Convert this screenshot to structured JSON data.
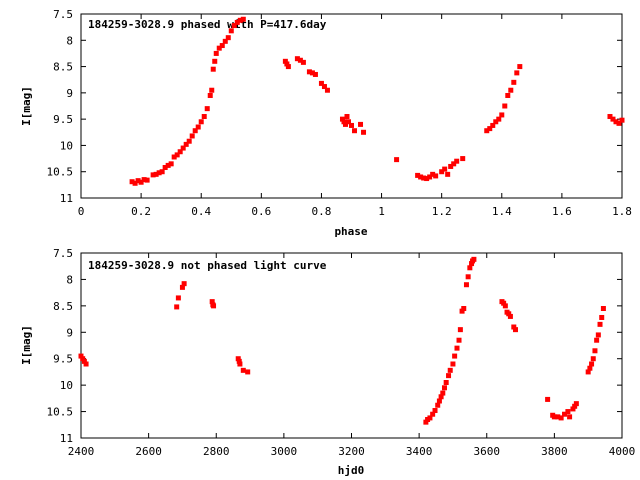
{
  "colors": {
    "points": "#ff0000",
    "axes": "#000000",
    "background": "#ffffff"
  },
  "chart_data": [
    {
      "type": "scatter",
      "title": "184259-3028.9 phased with P=417.6day",
      "xlabel": "phase",
      "ylabel": "I[mag]",
      "xlim": [
        0,
        1.8
      ],
      "ylim": [
        7.5,
        11
      ],
      "y_inverted": true,
      "grid": false,
      "xticks": [
        0,
        0.2,
        0.4,
        0.6,
        0.8,
        1,
        1.2,
        1.4,
        1.6,
        1.8
      ],
      "xtick_labels": [
        "0",
        "0.2",
        "0.4",
        "0.6",
        "0.8",
        "1",
        "1.2",
        "1.4",
        "1.6",
        "1.8"
      ],
      "yticks": [
        7.5,
        8,
        8.5,
        9,
        9.5,
        10,
        10.5,
        11
      ],
      "ytick_labels": [
        "7.5",
        "8",
        "8.5",
        "9",
        "9.5",
        "10",
        "10.5",
        "11"
      ],
      "series": [
        {
          "points": [
            [
              0.17,
              10.69
            ],
            [
              0.18,
              10.72
            ],
            [
              0.19,
              10.67
            ],
            [
              0.2,
              10.7
            ],
            [
              0.21,
              10.65
            ],
            [
              0.22,
              10.66
            ],
            [
              0.24,
              10.56
            ],
            [
              0.25,
              10.55
            ],
            [
              0.26,
              10.52
            ],
            [
              0.27,
              10.5
            ],
            [
              0.28,
              10.42
            ],
            [
              0.29,
              10.38
            ],
            [
              0.3,
              10.35
            ],
            [
              0.31,
              10.22
            ],
            [
              0.32,
              10.18
            ],
            [
              0.33,
              10.12
            ],
            [
              0.34,
              10.05
            ],
            [
              0.35,
              9.98
            ],
            [
              0.36,
              9.92
            ],
            [
              0.37,
              9.82
            ],
            [
              0.38,
              9.72
            ],
            [
              0.39,
              9.65
            ],
            [
              0.4,
              9.55
            ],
            [
              0.41,
              9.45
            ],
            [
              0.42,
              9.3
            ],
            [
              0.43,
              9.05
            ],
            [
              0.435,
              8.95
            ],
            [
              0.44,
              8.55
            ],
            [
              0.445,
              8.4
            ],
            [
              0.45,
              8.25
            ],
            [
              0.46,
              8.15
            ],
            [
              0.47,
              8.1
            ],
            [
              0.48,
              8.02
            ],
            [
              0.49,
              7.95
            ],
            [
              0.5,
              7.82
            ],
            [
              0.51,
              7.72
            ],
            [
              0.52,
              7.66
            ],
            [
              0.53,
              7.62
            ],
            [
              0.54,
              7.6
            ],
            [
              0.68,
              8.4
            ],
            [
              0.685,
              8.45
            ],
            [
              0.69,
              8.5
            ],
            [
              0.72,
              8.35
            ],
            [
              0.73,
              8.38
            ],
            [
              0.74,
              8.42
            ],
            [
              0.76,
              8.6
            ],
            [
              0.77,
              8.62
            ],
            [
              0.78,
              8.65
            ],
            [
              0.8,
              8.82
            ],
            [
              0.81,
              8.88
            ],
            [
              0.82,
              8.95
            ],
            [
              0.87,
              9.5
            ],
            [
              0.875,
              9.55
            ],
            [
              0.88,
              9.6
            ],
            [
              0.885,
              9.45
            ],
            [
              0.89,
              9.55
            ],
            [
              0.9,
              9.62
            ],
            [
              0.91,
              9.72
            ],
            [
              0.93,
              9.6
            ],
            [
              0.94,
              9.75
            ],
            [
              1.05,
              10.27
            ],
            [
              1.12,
              10.57
            ],
            [
              1.13,
              10.6
            ],
            [
              1.14,
              10.62
            ],
            [
              1.15,
              10.63
            ],
            [
              1.16,
              10.6
            ],
            [
              1.17,
              10.55
            ],
            [
              1.18,
              10.58
            ],
            [
              1.2,
              10.5
            ],
            [
              1.21,
              10.45
            ],
            [
              1.22,
              10.55
            ],
            [
              1.23,
              10.4
            ],
            [
              1.24,
              10.35
            ],
            [
              1.25,
              10.3
            ],
            [
              1.27,
              10.25
            ],
            [
              1.35,
              9.72
            ],
            [
              1.36,
              9.68
            ],
            [
              1.37,
              9.62
            ],
            [
              1.38,
              9.55
            ],
            [
              1.39,
              9.5
            ],
            [
              1.4,
              9.42
            ],
            [
              1.41,
              9.25
            ],
            [
              1.42,
              9.05
            ],
            [
              1.43,
              8.95
            ],
            [
              1.44,
              8.8
            ],
            [
              1.45,
              8.62
            ],
            [
              1.46,
              8.5
            ],
            [
              1.76,
              9.45
            ],
            [
              1.77,
              9.5
            ],
            [
              1.78,
              9.55
            ],
            [
              1.79,
              9.58
            ],
            [
              1.8,
              9.52
            ]
          ]
        }
      ]
    },
    {
      "type": "scatter",
      "title": "184259-3028.9 not phased light curve",
      "xlabel": "hjd0",
      "ylabel": "I[mag]",
      "xlim": [
        2400,
        4000
      ],
      "ylim": [
        7.5,
        11
      ],
      "y_inverted": true,
      "grid": false,
      "xticks": [
        2400,
        2600,
        2800,
        3000,
        3200,
        3400,
        3600,
        3800,
        4000
      ],
      "xtick_labels": [
        "2400",
        "2600",
        "2800",
        "3000",
        "3200",
        "3400",
        "3600",
        "3800",
        "4000"
      ],
      "yticks": [
        7.5,
        8,
        8.5,
        9,
        9.5,
        10,
        10.5,
        11
      ],
      "ytick_labels": [
        "7.5",
        "8",
        "8.5",
        "9",
        "9.5",
        "10",
        "10.5",
        "11"
      ],
      "series": [
        {
          "points": [
            [
              2400,
              9.45
            ],
            [
              2405,
              9.5
            ],
            [
              2410,
              9.55
            ],
            [
              2415,
              9.6
            ],
            [
              2683,
              8.52
            ],
            [
              2688,
              8.35
            ],
            [
              2700,
              8.15
            ],
            [
              2705,
              8.08
            ],
            [
              2788,
              8.42
            ],
            [
              2790,
              8.48
            ],
            [
              2792,
              8.5
            ],
            [
              2865,
              9.5
            ],
            [
              2868,
              9.55
            ],
            [
              2870,
              9.6
            ],
            [
              2880,
              9.72
            ],
            [
              2893,
              9.75
            ],
            [
              3420,
              10.7
            ],
            [
              3425,
              10.65
            ],
            [
              3432,
              10.62
            ],
            [
              3440,
              10.55
            ],
            [
              3447,
              10.48
            ],
            [
              3455,
              10.38
            ],
            [
              3460,
              10.3
            ],
            [
              3465,
              10.22
            ],
            [
              3470,
              10.15
            ],
            [
              3475,
              10.05
            ],
            [
              3480,
              9.95
            ],
            [
              3487,
              9.82
            ],
            [
              3492,
              9.72
            ],
            [
              3500,
              9.6
            ],
            [
              3505,
              9.45
            ],
            [
              3512,
              9.3
            ],
            [
              3518,
              9.15
            ],
            [
              3522,
              8.95
            ],
            [
              3527,
              8.6
            ],
            [
              3532,
              8.55
            ],
            [
              3540,
              8.1
            ],
            [
              3545,
              7.95
            ],
            [
              3550,
              7.78
            ],
            [
              3555,
              7.7
            ],
            [
              3558,
              7.65
            ],
            [
              3562,
              7.62
            ],
            [
              3645,
              8.42
            ],
            [
              3650,
              8.45
            ],
            [
              3655,
              8.5
            ],
            [
              3660,
              8.62
            ],
            [
              3665,
              8.65
            ],
            [
              3670,
              8.7
            ],
            [
              3680,
              8.9
            ],
            [
              3685,
              8.95
            ],
            [
              3780,
              10.27
            ],
            [
              3795,
              10.57
            ],
            [
              3800,
              10.6
            ],
            [
              3810,
              10.6
            ],
            [
              3820,
              10.62
            ],
            [
              3830,
              10.55
            ],
            [
              3840,
              10.5
            ],
            [
              3845,
              10.6
            ],
            [
              3855,
              10.45
            ],
            [
              3860,
              10.4
            ],
            [
              3865,
              10.35
            ],
            [
              3900,
              9.75
            ],
            [
              3905,
              9.68
            ],
            [
              3910,
              9.6
            ],
            [
              3915,
              9.5
            ],
            [
              3920,
              9.35
            ],
            [
              3925,
              9.15
            ],
            [
              3930,
              9.05
            ],
            [
              3935,
              8.85
            ],
            [
              3940,
              8.72
            ],
            [
              3945,
              8.55
            ]
          ]
        }
      ]
    }
  ]
}
